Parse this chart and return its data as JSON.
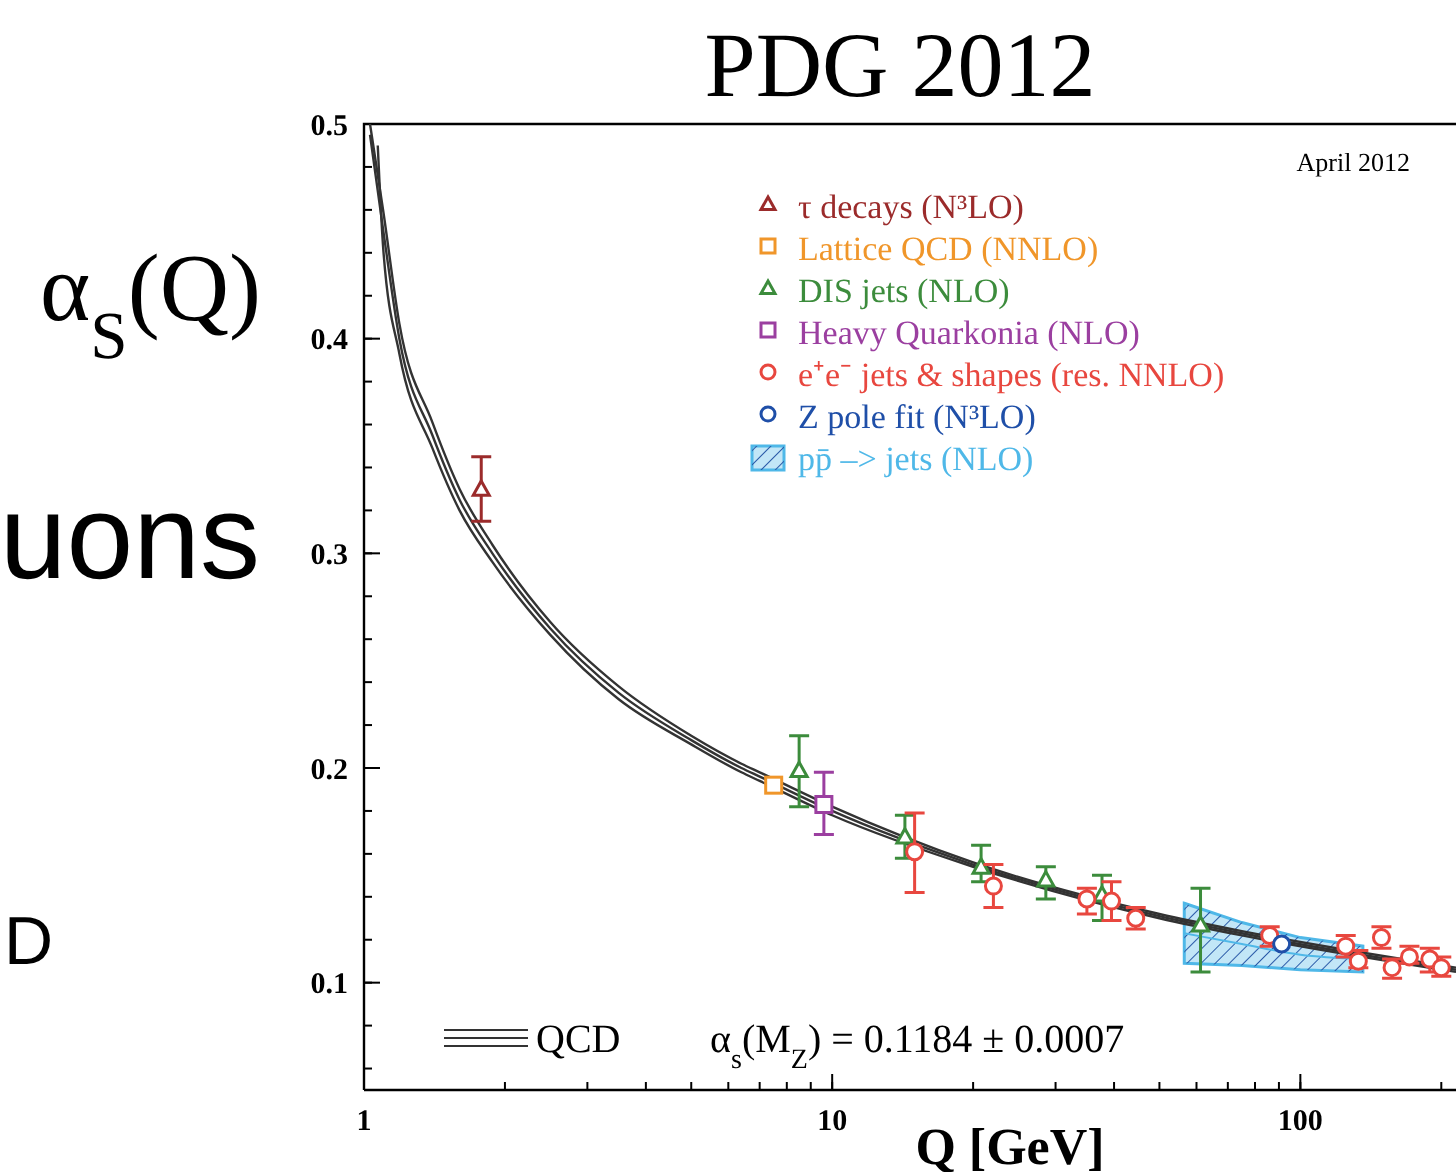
{
  "chart_data": {
    "type": "scatter",
    "title": "PDG 2012",
    "xlabel": "Q [GeV]",
    "ylabel": "α$_{S}$(Q)",
    "log": "x",
    "xlim": [
      1,
      215
    ],
    "xticks": [
      1,
      10,
      100
    ],
    "ylim": [
      0.05,
      0.5
    ],
    "yticks": [
      {
        "value": 0.1,
        "label": "0.1"
      },
      {
        "value": 0.2,
        "label": "0.2"
      },
      {
        "value": 0.3,
        "label": "0.3"
      },
      {
        "value": 0.4,
        "label": "0.4"
      },
      {
        "value": 0.5,
        "label": "0.5"
      }
    ],
    "grid": false,
    "legend": "top right",
    "annotations": [
      "April 2012",
      "QCD",
      "α$_{s}$(M$_{Z}$) = 0.1184 ± 0.0007",
      "uons",
      "D"
    ],
    "series": [
      {
        "name": "pp̄ –> jets (NLO)",
        "type": "line",
        "color": "#4fb8e8",
        "x": [
          56.5,
          75,
          100,
          136
        ],
        "values": [
          0.123,
          0.118,
          0.113,
          0.111
        ],
        "lower": [
          0.109,
          0.108,
          0.106,
          0.105
        ],
        "upper": [
          0.137,
          0.128,
          0.121,
          0.117
        ]
      },
      {
        "type": "line",
        "color": "#333333",
        "x": [
          1.03,
          1.1,
          1.19,
          1.4,
          1.6,
          1.88,
          2.5,
          3.5,
          5,
          6.4,
          7,
          10,
          20,
          50,
          75,
          215
        ],
        "values": [
          0.5,
          0.459,
          0.407,
          0.361,
          0.33,
          0.304,
          0.268,
          0.238,
          0.215,
          0.202,
          0.198,
          0.182,
          0.156,
          0.132,
          0.124,
          0.107
        ]
      },
      {
        "type": "line",
        "color": "#333333",
        "x": [
          1.03,
          1.1,
          1.19,
          1.4,
          1.6,
          1.88,
          2.5,
          3.5,
          5,
          6.4,
          7,
          10,
          20,
          50,
          75,
          215
        ],
        "values": [
          0.495,
          0.45,
          0.4,
          0.355,
          0.325,
          0.3,
          0.265,
          0.235,
          0.213,
          0.2,
          0.196,
          0.18,
          0.155,
          0.131,
          0.123,
          0.106
        ]
      },
      {
        "type": "line",
        "color": "#333333",
        "x": [
          1.07,
          1.1,
          1.19,
          1.4,
          1.6,
          1.88,
          2.5,
          3.5,
          5,
          6.4,
          7,
          10,
          20,
          50,
          75,
          215
        ],
        "values": [
          0.49,
          0.441,
          0.393,
          0.349,
          0.32,
          0.296,
          0.262,
          0.232,
          0.211,
          0.198,
          0.194,
          0.178,
          0.154,
          0.13,
          0.122,
          0.105
        ]
      },
      {
        "name": "τ decays (N³LO)",
        "color": "#9b2b2b",
        "marker": "triangle",
        "x": [
          1.78
        ],
        "values": [
          0.33
        ],
        "errors": [
          [
            0.315,
            0.345
          ]
        ]
      },
      {
        "name": "Lattice QCD (NNLO)",
        "color": "#f0962a",
        "marker": "square",
        "x": [
          7.5
        ],
        "values": [
          0.192
        ]
      },
      {
        "name": "DIS jets (NLO)",
        "color": "#3c8c3c",
        "marker": "triangle",
        "x": [
          8.5,
          14.3,
          20.8,
          28.6,
          37.7,
          61.2
        ],
        "values": [
          0.199,
          0.168,
          0.154,
          0.148,
          0.141,
          0.127
        ],
        "errors": [
          [
            0.182,
            0.215
          ],
          [
            0.158,
            0.178
          ],
          [
            0.147,
            0.164
          ],
          [
            0.139,
            0.154
          ],
          [
            0.129,
            0.15
          ],
          [
            0.105,
            0.144
          ]
        ]
      },
      {
        "name": "Heavy Quarkonia (NLO)",
        "color": "#9b3fa0",
        "marker": "square",
        "x": [
          9.6
        ],
        "values": [
          0.183
        ],
        "errors": [
          [
            0.169,
            0.198
          ]
        ]
      },
      {
        "name": "e⁺e⁻ jets & shapes (res. NNLO)",
        "color": "#e8473f",
        "marker": "circle",
        "x": [
          15,
          22.1,
          35,
          39.5,
          44.5,
          86,
          125,
          133,
          149,
          157,
          171,
          189,
          200
        ],
        "values": [
          0.161,
          0.145,
          0.139,
          0.138,
          0.13,
          0.122,
          0.117,
          0.11,
          0.121,
          0.107,
          0.112,
          0.111,
          0.107
        ],
        "errors": [
          [
            0.142,
            0.179
          ],
          [
            0.135,
            0.155
          ],
          [
            0.132,
            0.144
          ],
          [
            0.129,
            0.147
          ],
          [
            0.125,
            0.135
          ],
          [
            0.117,
            0.126
          ],
          [
            0.112,
            0.122
          ],
          [
            0.107,
            0.115
          ],
          [
            0.116,
            0.126
          ],
          [
            0.102,
            0.111
          ],
          [
            0.109,
            0.117
          ],
          [
            0.105,
            0.116
          ],
          [
            0.103,
            0.112
          ]
        ]
      },
      {
        "name": "Z pole fit (N³LO)",
        "color": "#1f4fa8",
        "marker": "circle",
        "x": [
          91.2
        ],
        "values": [
          0.118
        ]
      }
    ]
  }
}
